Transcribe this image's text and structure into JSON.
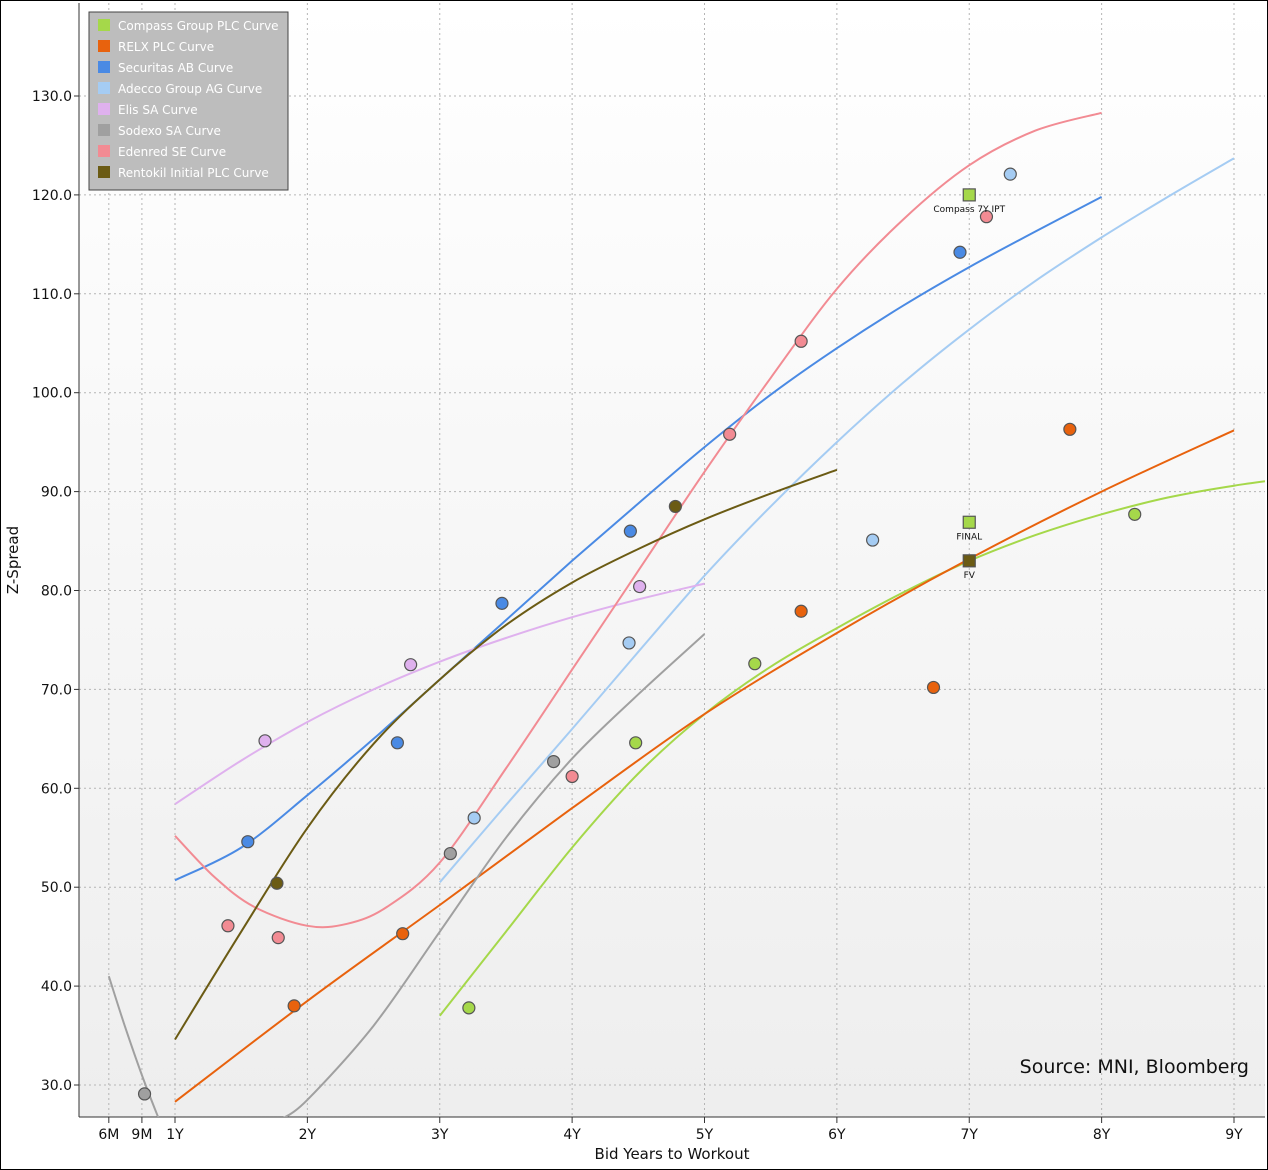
{
  "chart_data": {
    "type": "scatter",
    "xlabel": "Bid Years to Workout",
    "ylabel": "Z-Spread",
    "source": "Source: MNI, Bloomberg",
    "xlim": [
      0.2,
      9.5
    ],
    "ylim": [
      26.5,
      136
    ],
    "grid": true,
    "legend_position": "top-left",
    "x_ticks": [
      {
        "value": 0.5,
        "label": "6M"
      },
      {
        "value": 0.75,
        "label": "9M"
      },
      {
        "value": 1,
        "label": "1Y"
      },
      {
        "value": 2,
        "label": "2Y"
      },
      {
        "value": 3,
        "label": "3Y"
      },
      {
        "value": 4,
        "label": "4Y"
      },
      {
        "value": 5,
        "label": "5Y"
      },
      {
        "value": 6,
        "label": "6Y"
      },
      {
        "value": 7,
        "label": "7Y"
      },
      {
        "value": 8,
        "label": "8Y"
      },
      {
        "value": 9,
        "label": "9Y"
      }
    ],
    "y_ticks": [
      {
        "value": 30,
        "label": "30.0"
      },
      {
        "value": 40,
        "label": "40.0"
      },
      {
        "value": 50,
        "label": "50.0"
      },
      {
        "value": 60,
        "label": "60.0"
      },
      {
        "value": 70,
        "label": "70.0"
      },
      {
        "value": 80,
        "label": "80.0"
      },
      {
        "value": 90,
        "label": "90.0"
      },
      {
        "value": 100,
        "label": "100.0"
      },
      {
        "value": 110,
        "label": "110.0"
      },
      {
        "value": 120,
        "label": "120.0"
      },
      {
        "value": 130,
        "label": "130.0"
      }
    ],
    "series": [
      {
        "name": "Compass Group PLC Curve",
        "color": "#a5d84a",
        "points": [
          [
            3.22,
            37.8
          ],
          [
            4.48,
            64.6
          ],
          [
            5.38,
            72.6
          ],
          [
            8.25,
            87.7
          ]
        ],
        "curve": [
          [
            3.0,
            37.0
          ],
          [
            3.5,
            45.5
          ],
          [
            4.0,
            54.0
          ],
          [
            4.5,
            61.5
          ],
          [
            5.0,
            67.5
          ],
          [
            5.5,
            72.3
          ],
          [
            6.0,
            76.2
          ],
          [
            6.5,
            79.8
          ],
          [
            7.0,
            83.0
          ],
          [
            7.5,
            85.6
          ],
          [
            8.0,
            87.7
          ],
          [
            8.5,
            89.4
          ],
          [
            9.0,
            90.6
          ],
          [
            9.5,
            91.5
          ]
        ]
      },
      {
        "name": "RELX PLC Curve",
        "color": "#e8620d",
        "points": [
          [
            1.9,
            38.0
          ],
          [
            2.72,
            45.3
          ],
          [
            5.73,
            77.9
          ],
          [
            6.73,
            70.2
          ],
          [
            7.76,
            96.3
          ]
        ],
        "curve": [
          [
            1.0,
            28.3
          ],
          [
            2.0,
            38.5
          ],
          [
            3.0,
            48.2
          ],
          [
            4.0,
            58.0
          ],
          [
            5.0,
            67.5
          ],
          [
            6.0,
            75.7
          ],
          [
            7.0,
            83.2
          ],
          [
            8.0,
            90.0
          ],
          [
            9.0,
            96.2
          ]
        ]
      },
      {
        "name": "Securitas AB Curve",
        "color": "#4a8ae4",
        "points": [
          [
            1.55,
            54.6
          ],
          [
            2.68,
            64.6
          ],
          [
            3.47,
            78.7
          ],
          [
            4.44,
            86.0
          ],
          [
            6.93,
            114.2
          ]
        ],
        "curve": [
          [
            1.0,
            50.7
          ],
          [
            1.5,
            54.0
          ],
          [
            2.0,
            59.3
          ],
          [
            2.5,
            65.0
          ],
          [
            3.0,
            71.0
          ],
          [
            3.5,
            77.0
          ],
          [
            4.0,
            83.0
          ],
          [
            4.5,
            88.8
          ],
          [
            5.0,
            94.5
          ],
          [
            5.5,
            99.8
          ],
          [
            6.0,
            104.5
          ],
          [
            6.5,
            108.8
          ],
          [
            7.0,
            112.7
          ],
          [
            7.5,
            116.3
          ],
          [
            8.0,
            119.8
          ]
        ]
      },
      {
        "name": "Adecco Group AG Curve",
        "color": "#a5ccf3",
        "points": [
          [
            3.26,
            57.0
          ],
          [
            4.43,
            74.7
          ],
          [
            6.27,
            85.1
          ],
          [
            7.31,
            122.1
          ]
        ],
        "curve": [
          [
            3.0,
            50.5
          ],
          [
            3.5,
            58.3
          ],
          [
            4.0,
            66.0
          ],
          [
            4.5,
            73.8
          ],
          [
            5.0,
            81.5
          ],
          [
            5.5,
            88.5
          ],
          [
            6.0,
            95.0
          ],
          [
            6.5,
            101.0
          ],
          [
            7.0,
            106.4
          ],
          [
            7.5,
            111.3
          ],
          [
            8.0,
            115.7
          ],
          [
            8.5,
            119.8
          ],
          [
            9.0,
            123.7
          ]
        ]
      },
      {
        "name": "Elis SA Curve",
        "color": "#dfb1ee",
        "points": [
          [
            1.68,
            64.8
          ],
          [
            2.78,
            72.5
          ],
          [
            4.51,
            80.4
          ]
        ],
        "curve": [
          [
            1.0,
            58.4
          ],
          [
            1.5,
            62.8
          ],
          [
            2.0,
            66.7
          ],
          [
            2.5,
            70.0
          ],
          [
            3.0,
            72.8
          ],
          [
            3.5,
            75.2
          ],
          [
            4.0,
            77.3
          ],
          [
            4.5,
            79.1
          ],
          [
            5.0,
            80.7
          ]
        ]
      },
      {
        "name": "Sodexo SA Curve",
        "color": "#a0a0a0",
        "points": [
          [
            0.77,
            29.1
          ],
          [
            3.08,
            53.4
          ],
          [
            3.86,
            62.7
          ]
        ],
        "curve": [
          [
            0.5,
            41.0
          ],
          [
            0.62,
            36.0
          ],
          [
            0.75,
            31.0
          ],
          [
            0.88,
            26.5
          ]
        ],
        "curve2": [
          [
            1.8,
            26.5
          ],
          [
            2.0,
            28.5
          ],
          [
            2.5,
            36.0
          ],
          [
            3.0,
            45.5
          ],
          [
            3.5,
            55.0
          ],
          [
            4.0,
            63.0
          ],
          [
            4.5,
            69.5
          ],
          [
            5.0,
            75.6
          ]
        ]
      },
      {
        "name": "Edenred SE Curve",
        "color": "#f28b93",
        "points": [
          [
            1.4,
            46.1
          ],
          [
            1.78,
            44.9
          ],
          [
            4.0,
            61.2
          ],
          [
            5.19,
            95.8
          ],
          [
            5.73,
            105.2
          ],
          [
            7.13,
            117.8
          ]
        ],
        "curve": [
          [
            1.0,
            55.2
          ],
          [
            1.3,
            51.0
          ],
          [
            1.6,
            48.0
          ],
          [
            2.0,
            46.1
          ],
          [
            2.3,
            46.3
          ],
          [
            2.6,
            48.0
          ],
          [
            3.0,
            52.5
          ],
          [
            3.5,
            62.0
          ],
          [
            4.0,
            72.0
          ],
          [
            4.5,
            82.0
          ],
          [
            5.0,
            92.0
          ],
          [
            5.5,
            101.5
          ],
          [
            6.0,
            110.5
          ],
          [
            6.5,
            117.5
          ],
          [
            7.0,
            123.0
          ],
          [
            7.5,
            126.5
          ],
          [
            8.0,
            128.3
          ]
        ]
      },
      {
        "name": "Rentokil Initial PLC Curve",
        "color": "#6b5b14",
        "points": [
          [
            1.77,
            50.4
          ],
          [
            4.78,
            88.5
          ]
        ],
        "curve": [
          [
            1.0,
            34.6
          ],
          [
            1.5,
            45.5
          ],
          [
            2.0,
            56.0
          ],
          [
            2.5,
            64.5
          ],
          [
            3.0,
            71.0
          ],
          [
            3.5,
            76.5
          ],
          [
            4.0,
            80.8
          ],
          [
            4.5,
            84.2
          ],
          [
            5.0,
            87.2
          ],
          [
            5.5,
            89.8
          ],
          [
            6.0,
            92.2
          ]
        ]
      }
    ],
    "annotations": [
      {
        "x": 7.0,
        "y": 120.0,
        "label": "Compass 7Y IPT",
        "color": "#a5d84a"
      },
      {
        "x": 7.0,
        "y": 86.9,
        "label": "FINAL",
        "color": "#a5d84a"
      },
      {
        "x": 7.0,
        "y": 83.0,
        "label": "FV",
        "color": "#6b5b14"
      }
    ]
  }
}
